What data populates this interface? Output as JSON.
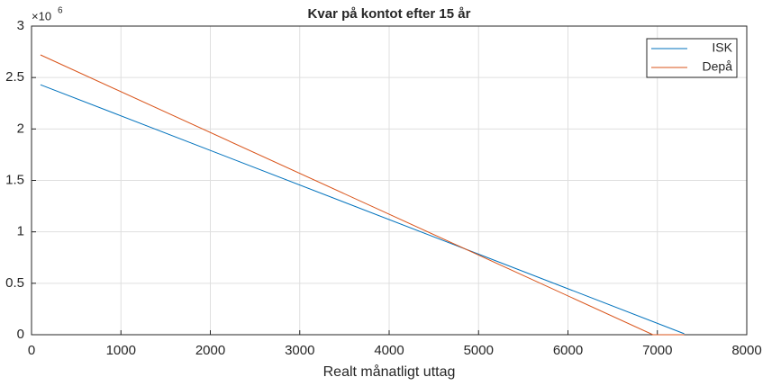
{
  "chart_data": {
    "type": "line",
    "title": "Kvar på kontot efter 15 år",
    "xlabel": "Realt månatligt uttag",
    "y_multiplier": "×10",
    "y_multiplier_exponent": "6",
    "xlim": [
      0,
      8000
    ],
    "xticks": [
      0,
      1000,
      2000,
      3000,
      4000,
      5000,
      6000,
      7000,
      8000
    ],
    "ylim": [
      0,
      3
    ],
    "yticks": [
      0,
      0.5,
      1,
      1.5,
      2,
      2.5,
      3
    ],
    "grid": true,
    "legend": "top-right",
    "series": [
      {
        "name": "ISK",
        "color": "#0072bd",
        "x": [
          100,
          7300
        ],
        "values": [
          2.43,
          0.01
        ]
      },
      {
        "name": "Depå",
        "color": "#d95319",
        "x": [
          100,
          6950,
          7300
        ],
        "values": [
          2.72,
          0,
          0
        ]
      }
    ]
  }
}
